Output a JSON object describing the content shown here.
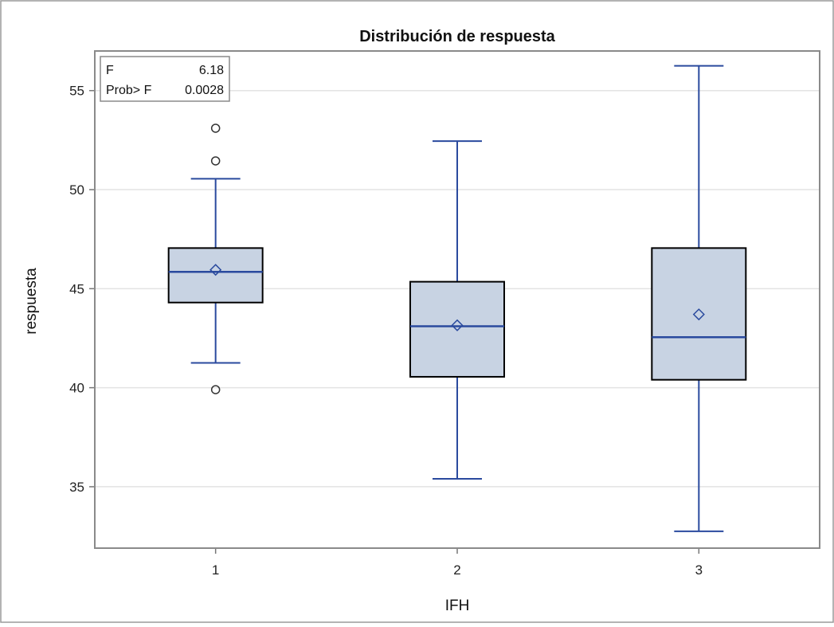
{
  "chart_data": {
    "type": "boxplot",
    "title": "Distribución de respuesta",
    "xlabel": "IFH",
    "ylabel": "respuesta",
    "ylim": [
      31.9,
      57.0
    ],
    "yticks": [
      35,
      40,
      45,
      50,
      55
    ],
    "grid": true,
    "categories": [
      "1",
      "2",
      "3"
    ],
    "boxes": [
      {
        "category": "1",
        "q1": 44.3,
        "median": 45.85,
        "q3": 47.05,
        "mean": 45.95,
        "whisker_low": 41.25,
        "whisker_high": 50.55,
        "outliers": [
          39.9,
          51.45,
          53.1
        ]
      },
      {
        "category": "2",
        "q1": 40.55,
        "median": 43.1,
        "q3": 45.35,
        "mean": 43.15,
        "whisker_low": 35.4,
        "whisker_high": 52.45,
        "outliers": []
      },
      {
        "category": "3",
        "q1": 40.4,
        "median": 42.55,
        "q3": 47.05,
        "mean": 43.7,
        "whisker_low": 32.75,
        "whisker_high": 56.25,
        "outliers": []
      }
    ],
    "inset": {
      "placement": "top-left",
      "rows": [
        {
          "label": "F",
          "value": "6.18"
        },
        {
          "label": "Prob> F",
          "value": "0.0028"
        }
      ]
    },
    "colors": {
      "box_fill": "#c8d3e3",
      "box_edge": "#000000",
      "whisker": "#2a4a9e",
      "median": "#2a4a9e",
      "mean_marker": "#2a4a9e",
      "outlier": "#333333",
      "grid": "#e3e3e3",
      "frame": "#8a8a8a"
    }
  }
}
